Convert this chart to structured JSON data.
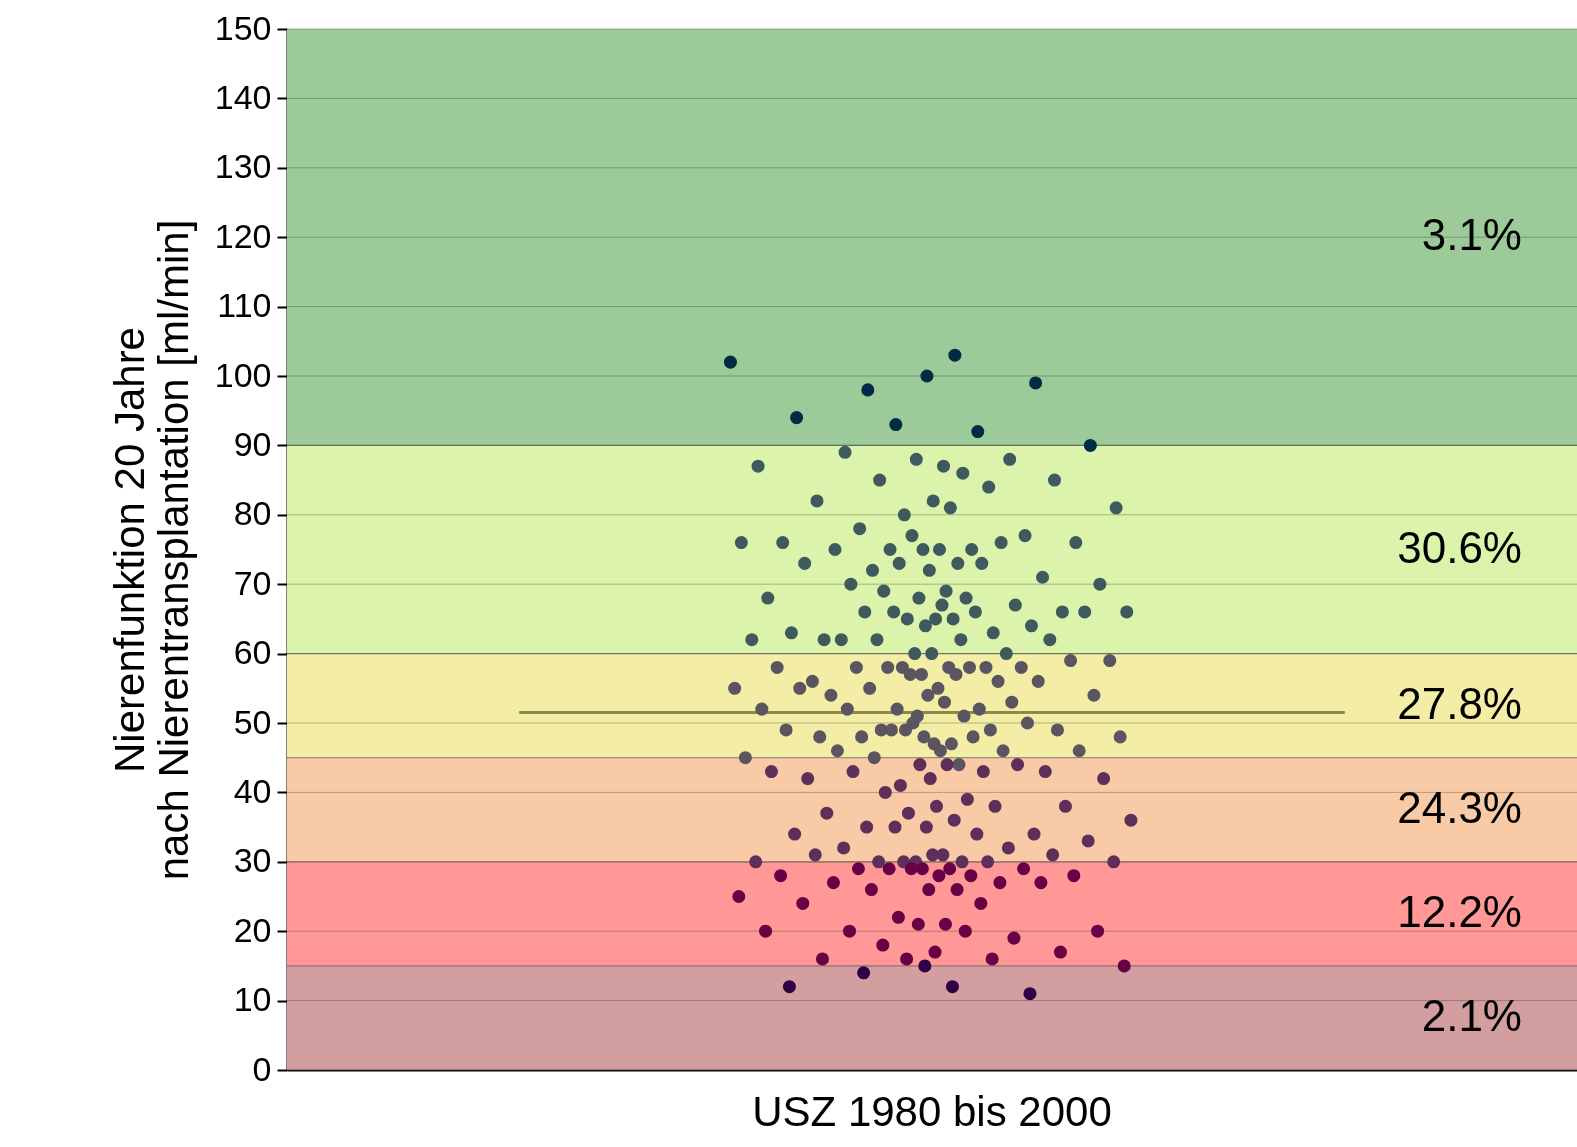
{
  "chart_data": {
    "type": "scatter",
    "ylabel": "Nierenfunktion 20 Jahre\nnach Nierentransplantation [ml/min]",
    "categories": [
      "USZ 1980 bis 2000"
    ],
    "ylim": [
      0,
      150
    ],
    "yticks": [
      0,
      10,
      20,
      30,
      40,
      50,
      60,
      70,
      80,
      90,
      100,
      110,
      120,
      130,
      140,
      150
    ],
    "grid": "y",
    "ref_lines": [
      {
        "axis": "y",
        "value": 51.5,
        "color": "#8c8a4a"
      }
    ],
    "bands": [
      {
        "axis": "y",
        "from": 0,
        "to": 15,
        "label": "2.1%",
        "color": "#d29ea0"
      },
      {
        "axis": "y",
        "from": 15,
        "to": 30,
        "label": "12.2%",
        "color": "#ff9896"
      },
      {
        "axis": "y",
        "from": 30,
        "to": 45,
        "label": "24.3%",
        "color": "#f8cba6"
      },
      {
        "axis": "y",
        "from": 45,
        "to": 60,
        "label": "27.8%",
        "color": "#f3eda6"
      },
      {
        "axis": "y",
        "from": 60,
        "to": 90,
        "label": "30.6%",
        "color": "#dbf3aa"
      },
      {
        "axis": "y",
        "from": 90,
        "to": 150,
        "label": "3.1%",
        "color": "#9ccb99"
      }
    ],
    "series": [
      {
        "color": "#002b45",
        "x": [
          "USZ 1980 bis 2000",
          "USZ 1980 bis 2000",
          "USZ 1980 bis 2000",
          "USZ 1980 bis 2000",
          "USZ 1980 bis 2000",
          "USZ 1980 bis 2000",
          "USZ 1980 bis 2000",
          "USZ 1980 bis 2000",
          "USZ 1980 bis 2000"
        ],
        "values": [
          102,
          103,
          98,
          99,
          100,
          94,
          92,
          93,
          90
        ]
      },
      {
        "color": "#3e5a5e",
        "x": [
          "USZ 1980 bis 2000",
          "USZ 1980 bis 2000",
          "USZ 1980 bis 2000",
          "USZ 1980 bis 2000",
          "USZ 1980 bis 2000",
          "USZ 1980 bis 2000",
          "USZ 1980 bis 2000",
          "USZ 1980 bis 2000",
          "USZ 1980 bis 2000",
          "USZ 1980 bis 2000",
          "USZ 1980 bis 2000",
          "USZ 1980 bis 2000",
          "USZ 1980 bis 2000",
          "USZ 1980 bis 2000",
          "USZ 1980 bis 2000",
          "USZ 1980 bis 2000",
          "USZ 1980 bis 2000",
          "USZ 1980 bis 2000",
          "USZ 1980 bis 2000",
          "USZ 1980 bis 2000",
          "USZ 1980 bis 2000",
          "USZ 1980 bis 2000",
          "USZ 1980 bis 2000",
          "USZ 1980 bis 2000",
          "USZ 1980 bis 2000",
          "USZ 1980 bis 2000",
          "USZ 1980 bis 2000",
          "USZ 1980 bis 2000",
          "USZ 1980 bis 2000",
          "USZ 1980 bis 2000",
          "USZ 1980 bis 2000",
          "USZ 1980 bis 2000",
          "USZ 1980 bis 2000",
          "USZ 1980 bis 2000",
          "USZ 1980 bis 2000",
          "USZ 1980 bis 2000",
          "USZ 1980 bis 2000",
          "USZ 1980 bis 2000",
          "USZ 1980 bis 2000",
          "USZ 1980 bis 2000",
          "USZ 1980 bis 2000",
          "USZ 1980 bis 2000",
          "USZ 1980 bis 2000",
          "USZ 1980 bis 2000",
          "USZ 1980 bis 2000",
          "USZ 1980 bis 2000",
          "USZ 1980 bis 2000",
          "USZ 1980 bis 2000",
          "USZ 1980 bis 2000",
          "USZ 1980 bis 2000",
          "USZ 1980 bis 2000",
          "USZ 1980 bis 2000",
          "USZ 1980 bis 2000",
          "USZ 1980 bis 2000",
          "USZ 1980 bis 2000",
          "USZ 1980 bis 2000",
          "USZ 1980 bis 2000",
          "USZ 1980 bis 2000",
          "USZ 1980 bis 2000",
          "USZ 1980 bis 2000",
          "USZ 1980 bis 2000",
          "USZ 1980 bis 2000",
          "USZ 1980 bis 2000",
          "USZ 1980 bis 2000"
        ],
        "values": [
          87,
          89,
          88,
          88,
          87,
          86,
          85,
          85,
          82,
          82,
          84,
          80,
          81,
          81,
          78,
          77,
          75,
          76,
          75,
          75,
          76,
          75,
          75,
          76,
          77,
          76,
          73,
          72,
          71,
          72,
          73,
          73,
          73,
          70,
          69,
          70,
          67,
          68,
          68,
          68,
          69,
          66,
          65,
          62,
          63,
          65,
          66,
          65,
          66,
          64,
          64,
          63,
          66,
          66,
          66,
          67,
          62,
          60,
          60,
          62,
          62,
          62,
          62,
          60
        ]
      },
      {
        "color": "#5a5560",
        "x": [
          "USZ 1980 bis 2000",
          "USZ 1980 bis 2000",
          "USZ 1980 bis 2000",
          "USZ 1980 bis 2000",
          "USZ 1980 bis 2000",
          "USZ 1980 bis 2000",
          "USZ 1980 bis 2000",
          "USZ 1980 bis 2000",
          "USZ 1980 bis 2000",
          "USZ 1980 bis 2000",
          "USZ 1980 bis 2000",
          "USZ 1980 bis 2000",
          "USZ 1980 bis 2000",
          "USZ 1980 bis 2000",
          "USZ 1980 bis 2000",
          "USZ 1980 bis 2000",
          "USZ 1980 bis 2000",
          "USZ 1980 bis 2000",
          "USZ 1980 bis 2000",
          "USZ 1980 bis 2000",
          "USZ 1980 bis 2000",
          "USZ 1980 bis 2000",
          "USZ 1980 bis 2000",
          "USZ 1980 bis 2000",
          "USZ 1980 bis 2000",
          "USZ 1980 bis 2000",
          "USZ 1980 bis 2000",
          "USZ 1980 bis 2000",
          "USZ 1980 bis 2000",
          "USZ 1980 bis 2000",
          "USZ 1980 bis 2000",
          "USZ 1980 bis 2000",
          "USZ 1980 bis 2000",
          "USZ 1980 bis 2000",
          "USZ 1980 bis 2000",
          "USZ 1980 bis 2000",
          "USZ 1980 bis 2000",
          "USZ 1980 bis 2000",
          "USZ 1980 bis 2000",
          "USZ 1980 bis 2000",
          "USZ 1980 bis 2000",
          "USZ 1980 bis 2000",
          "USZ 1980 bis 2000",
          "USZ 1980 bis 2000",
          "USZ 1980 bis 2000",
          "USZ 1980 bis 2000",
          "USZ 1980 bis 2000",
          "USZ 1980 bis 2000",
          "USZ 1980 bis 2000",
          "USZ 1980 bis 2000",
          "USZ 1980 bis 2000",
          "USZ 1980 bis 2000",
          "USZ 1980 bis 2000"
        ],
        "values": [
          56,
          58,
          58,
          59,
          58,
          58,
          58,
          57,
          58,
          58,
          58,
          59,
          55,
          54,
          56,
          57,
          55,
          57,
          55,
          56,
          54,
          55,
          52,
          52,
          54,
          53,
          52,
          53,
          51,
          52,
          51,
          49,
          49,
          47,
          48,
          49,
          49,
          48,
          47,
          48,
          50,
          48,
          49,
          48,
          49,
          46,
          46,
          46,
          46,
          50,
          45,
          44,
          45
        ]
      },
      {
        "color": "#5e2f5a",
        "x": [
          "USZ 1980 bis 2000",
          "USZ 1980 bis 2000",
          "USZ 1980 bis 2000",
          "USZ 1980 bis 2000",
          "USZ 1980 bis 2000",
          "USZ 1980 bis 2000",
          "USZ 1980 bis 2000",
          "USZ 1980 bis 2000",
          "USZ 1980 bis 2000",
          "USZ 1980 bis 2000",
          "USZ 1980 bis 2000",
          "USZ 1980 bis 2000",
          "USZ 1980 bis 2000",
          "USZ 1980 bis 2000",
          "USZ 1980 bis 2000",
          "USZ 1980 bis 2000",
          "USZ 1980 bis 2000",
          "USZ 1980 bis 2000",
          "USZ 1980 bis 2000",
          "USZ 1980 bis 2000",
          "USZ 1980 bis 2000",
          "USZ 1980 bis 2000",
          "USZ 1980 bis 2000",
          "USZ 1980 bis 2000",
          "USZ 1980 bis 2000",
          "USZ 1980 bis 2000",
          "USZ 1980 bis 2000",
          "USZ 1980 bis 2000",
          "USZ 1980 bis 2000",
          "USZ 1980 bis 2000",
          "USZ 1980 bis 2000",
          "USZ 1980 bis 2000",
          "USZ 1980 bis 2000",
          "USZ 1980 bis 2000",
          "USZ 1980 bis 2000",
          "USZ 1980 bis 2000",
          "USZ 1980 bis 2000",
          "USZ 1980 bis 2000",
          "USZ 1980 bis 2000",
          "USZ 1980 bis 2000"
        ],
        "values": [
          43,
          42,
          42,
          43,
          41,
          42,
          44,
          43,
          44,
          44,
          43,
          39,
          40,
          38,
          38,
          37,
          38,
          37,
          36,
          36,
          35,
          34,
          35,
          34,
          34,
          35,
          33,
          31,
          32,
          32,
          30,
          30,
          30,
          30,
          31,
          31,
          31,
          30,
          30,
          30
        ]
      },
      {
        "color": "#680046",
        "x": [
          "USZ 1980 bis 2000",
          "USZ 1980 bis 2000",
          "USZ 1980 bis 2000",
          "USZ 1980 bis 2000",
          "USZ 1980 bis 2000",
          "USZ 1980 bis 2000",
          "USZ 1980 bis 2000",
          "USZ 1980 bis 2000",
          "USZ 1980 bis 2000",
          "USZ 1980 bis 2000",
          "USZ 1980 bis 2000",
          "USZ 1980 bis 2000",
          "USZ 1980 bis 2000",
          "USZ 1980 bis 2000",
          "USZ 1980 bis 2000",
          "USZ 1980 bis 2000",
          "USZ 1980 bis 2000",
          "USZ 1980 bis 2000",
          "USZ 1980 bis 2000",
          "USZ 1980 bis 2000",
          "USZ 1980 bis 2000",
          "USZ 1980 bis 2000",
          "USZ 1980 bis 2000",
          "USZ 1980 bis 2000",
          "USZ 1980 bis 2000",
          "USZ 1980 bis 2000",
          "USZ 1980 bis 2000",
          "USZ 1980 bis 2000",
          "USZ 1980 bis 2000",
          "USZ 1980 bis 2000",
          "USZ 1980 bis 2000",
          "USZ 1980 bis 2000",
          "USZ 1980 bis 2000",
          "USZ 1980 bis 2000"
        ],
        "values": [
          29,
          29,
          29,
          29,
          28,
          28,
          29,
          28,
          28,
          27,
          27,
          29,
          25,
          26,
          26,
          27,
          26,
          24,
          24,
          22,
          20,
          21,
          20,
          19,
          21,
          20,
          20,
          18,
          17,
          17,
          16,
          16,
          16,
          15
        ]
      },
      {
        "color": "#2f0046",
        "x": [
          "USZ 1980 bis 2000",
          "USZ 1980 bis 2000",
          "USZ 1980 bis 2000",
          "USZ 1980 bis 2000",
          "USZ 1980 bis 2000"
        ],
        "values": [
          12,
          14,
          11,
          15,
          12
        ]
      }
    ]
  }
}
